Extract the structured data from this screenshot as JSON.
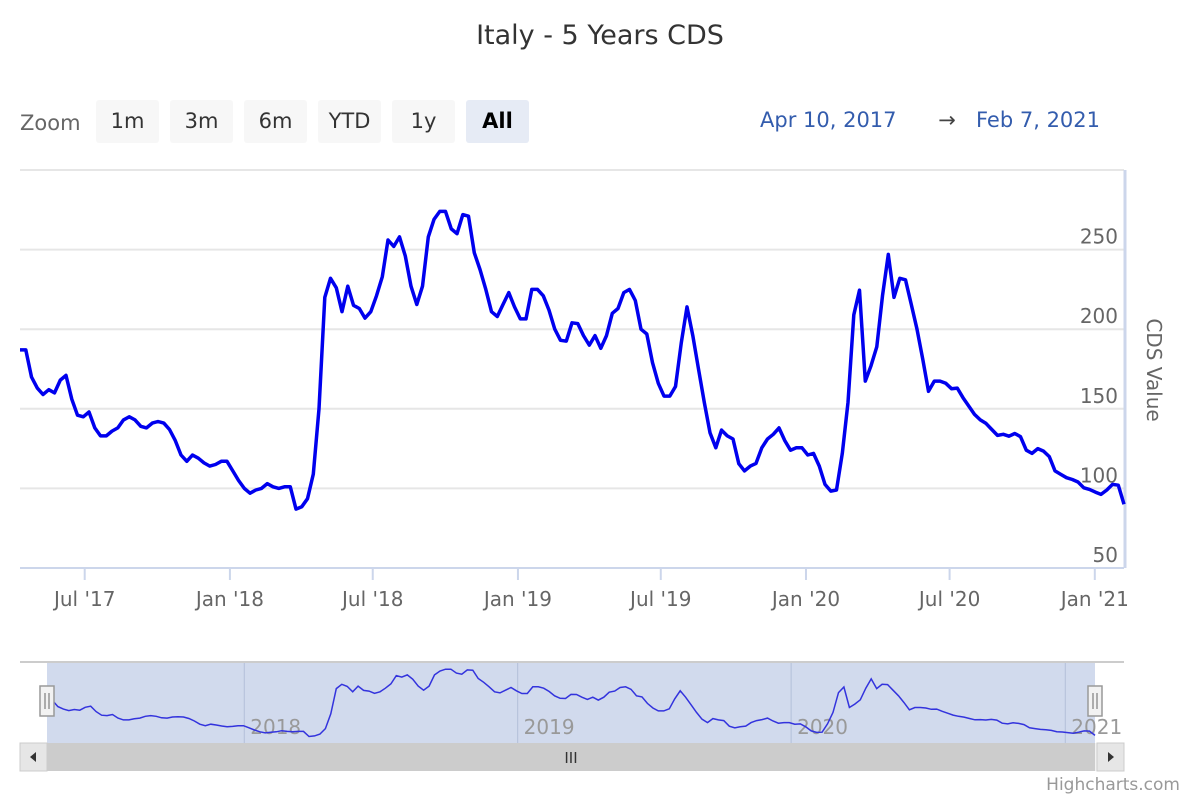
{
  "chart_data": {
    "type": "line",
    "title": "Italy - 5 Years CDS",
    "ylabel": "CDS Value",
    "xlabel": "",
    "ylim": [
      50,
      300
    ],
    "yticks": [
      50,
      100,
      150,
      200,
      250
    ],
    "grid": true,
    "start_date": "2017-04-10",
    "end_date": "2021-02-07",
    "xticks": [
      {
        "date": "2017-07-01",
        "label": "Jul '17"
      },
      {
        "date": "2018-01-01",
        "label": "Jan '18"
      },
      {
        "date": "2018-07-01",
        "label": "Jul '18"
      },
      {
        "date": "2019-01-01",
        "label": "Jan '19"
      },
      {
        "date": "2019-07-01",
        "label": "Jul '19"
      },
      {
        "date": "2020-01-01",
        "label": "Jan '20"
      },
      {
        "date": "2020-07-01",
        "label": "Jul '20"
      },
      {
        "date": "2021-01-01",
        "label": "Jan '21"
      }
    ],
    "series": [
      {
        "name": "CDS Value",
        "color": "#0000ee",
        "values": [
          187,
          187,
          170,
          163,
          159,
          162,
          160,
          168,
          171,
          156,
          146,
          145,
          148,
          138,
          133,
          133,
          136,
          138,
          143,
          145,
          143,
          139,
          138,
          141,
          142,
          141,
          137,
          130,
          121,
          117,
          121,
          119,
          116,
          114,
          115,
          117,
          117,
          111,
          105,
          100,
          97,
          99,
          100,
          103,
          101,
          100,
          101,
          101,
          87,
          88.5,
          93.5,
          109,
          150,
          220,
          232,
          226,
          211,
          227,
          215,
          213,
          207,
          211,
          221,
          233,
          256,
          252,
          258,
          246,
          227,
          215.5,
          227,
          258,
          269,
          274,
          274,
          263,
          260,
          272,
          271,
          248,
          237.5,
          225,
          211,
          208,
          215.5,
          223,
          214,
          206.5,
          206.5,
          225,
          225,
          221,
          212,
          200,
          193,
          192.5,
          204,
          203.5,
          196,
          190,
          196,
          188,
          196,
          210,
          213,
          223,
          225,
          218,
          200,
          197,
          179,
          166,
          158,
          158,
          164,
          191.5,
          214,
          196,
          175,
          154,
          135,
          125.5,
          136.6,
          133,
          131,
          115.5,
          111,
          114,
          115.7,
          125.5,
          131,
          134,
          138,
          130,
          124,
          125.5,
          125.5,
          121,
          122,
          114,
          102.5,
          98.3,
          99,
          122,
          154,
          209,
          224.5,
          167.4,
          177,
          189,
          221,
          247,
          220,
          232,
          231,
          215.5,
          200,
          181,
          161,
          167.4,
          167.4,
          166,
          162.6,
          163,
          157,
          151.7,
          146.5,
          143,
          140.8,
          137,
          133.3,
          134,
          132.8,
          134.5,
          132.5,
          124,
          122,
          125,
          123.4,
          120,
          111,
          108.8,
          106.7,
          105.6,
          104,
          100.4,
          99.4,
          97.7,
          96.2,
          99,
          102.5,
          102,
          90
        ]
      }
    ],
    "navigator": {
      "ticks": [
        {
          "date": "2018-01-01",
          "label": "2018"
        },
        {
          "date": "2019-01-01",
          "label": "2019"
        },
        {
          "date": "2020-01-01",
          "label": "2020"
        },
        {
          "date": "2021-01-01",
          "label": "2021"
        }
      ],
      "color": "#3333dd",
      "mask_color": "#6685c2"
    }
  },
  "toolbar": {
    "zoom_label": "Zoom",
    "buttons": [
      "1m",
      "3m",
      "6m",
      "YTD",
      "1y",
      "All"
    ],
    "selected": "All",
    "range_from": "Apr 10, 2017",
    "range_arrow": "→",
    "range_to": "Feb 7, 2021"
  },
  "scrollbar": {
    "thumb_grip": "III"
  },
  "credits": "Highcharts.com"
}
